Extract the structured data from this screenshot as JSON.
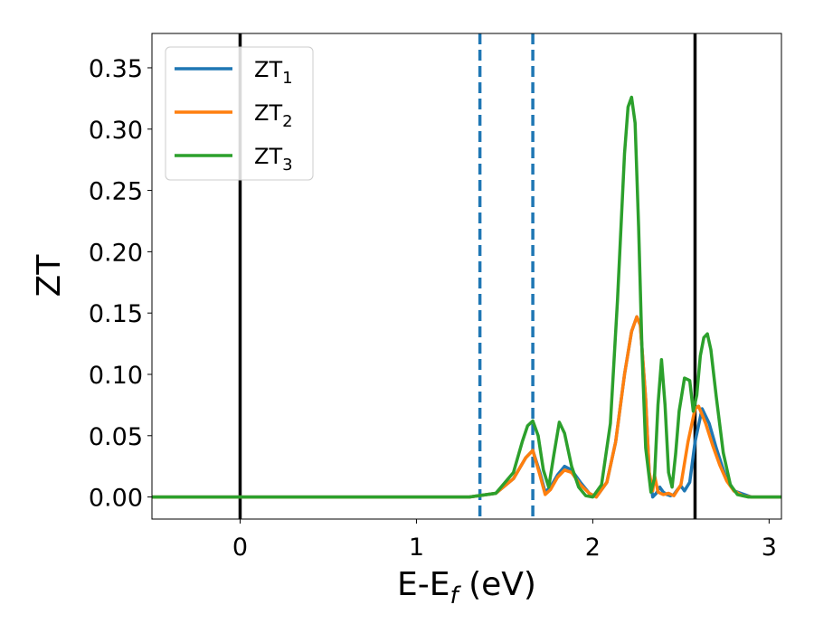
{
  "chart_data": {
    "type": "line",
    "xlabel": "E-E",
    "xlabel_sub": "f",
    "xlabel_unit": " (eV)",
    "ylabel": "ZT",
    "xlim": [
      -0.5,
      3.07
    ],
    "ylim": [
      -0.018,
      0.378
    ],
    "x_ticks": [
      0,
      1,
      2,
      3
    ],
    "x_tick_labels": [
      "0",
      "1",
      "2",
      "3"
    ],
    "y_ticks": [
      0.0,
      0.05,
      0.1,
      0.15,
      0.2,
      0.25,
      0.3,
      0.35
    ],
    "y_tick_labels": [
      "0.00",
      "0.05",
      "0.10",
      "0.15",
      "0.20",
      "0.25",
      "0.30",
      "0.35"
    ],
    "legend_position": "upper-left",
    "reference_lines": [
      {
        "x": 0.0,
        "style": "solid",
        "color": "#000000"
      },
      {
        "x": 2.58,
        "style": "solid",
        "color": "#000000"
      },
      {
        "x": 1.36,
        "style": "dashed",
        "color": "#1f77b4"
      },
      {
        "x": 1.66,
        "style": "dashed",
        "color": "#1f77b4"
      }
    ],
    "series": [
      {
        "name": "ZT",
        "name_sub": "1",
        "color": "#1f77b4",
        "x": [
          -0.5,
          1.3,
          1.45,
          1.55,
          1.62,
          1.66,
          1.7,
          1.73,
          1.76,
          1.8,
          1.84,
          1.88,
          1.93,
          1.98,
          2.02,
          2.08,
          2.13,
          2.18,
          2.22,
          2.25,
          2.27,
          2.3,
          2.32,
          2.34,
          2.36,
          2.38,
          2.4,
          2.42,
          2.44,
          2.46,
          2.48,
          2.5,
          2.52,
          2.55,
          2.58,
          2.62,
          2.66,
          2.7,
          2.75,
          2.8,
          2.9,
          3.07
        ],
        "y": [
          0.0,
          0.0,
          0.003,
          0.015,
          0.032,
          0.038,
          0.02,
          0.004,
          0.008,
          0.018,
          0.025,
          0.022,
          0.012,
          0.003,
          0.0,
          0.012,
          0.045,
          0.1,
          0.135,
          0.147,
          0.14,
          0.08,
          0.02,
          0.0,
          0.003,
          0.008,
          0.004,
          0.002,
          0.001,
          0.002,
          0.006,
          0.009,
          0.005,
          0.012,
          0.045,
          0.072,
          0.06,
          0.04,
          0.018,
          0.005,
          0.0,
          0.0
        ]
      },
      {
        "name": "ZT",
        "name_sub": "2",
        "color": "#ff7f0e",
        "x": [
          -0.5,
          1.3,
          1.45,
          1.55,
          1.62,
          1.66,
          1.7,
          1.73,
          1.76,
          1.8,
          1.84,
          1.88,
          1.93,
          1.98,
          2.02,
          2.08,
          2.13,
          2.18,
          2.22,
          2.25,
          2.27,
          2.3,
          2.32,
          2.34,
          2.35,
          2.37,
          2.4,
          2.43,
          2.46,
          2.5,
          2.54,
          2.58,
          2.6,
          2.64,
          2.68,
          2.72,
          2.76,
          2.8,
          2.85,
          2.9,
          3.07
        ],
        "y": [
          0.0,
          0.0,
          0.003,
          0.015,
          0.032,
          0.038,
          0.018,
          0.002,
          0.006,
          0.016,
          0.022,
          0.02,
          0.01,
          0.003,
          0.0,
          0.012,
          0.045,
          0.1,
          0.135,
          0.147,
          0.14,
          0.08,
          0.02,
          0.005,
          0.018,
          0.004,
          0.002,
          0.003,
          0.001,
          0.01,
          0.045,
          0.072,
          0.074,
          0.06,
          0.042,
          0.026,
          0.013,
          0.005,
          0.001,
          0.0,
          0.0
        ]
      },
      {
        "name": "ZT",
        "name_sub": "3",
        "color": "#2ca02c",
        "x": [
          -0.5,
          1.3,
          1.45,
          1.55,
          1.6,
          1.63,
          1.66,
          1.69,
          1.72,
          1.75,
          1.78,
          1.81,
          1.84,
          1.88,
          1.92,
          1.96,
          2.0,
          2.05,
          2.1,
          2.14,
          2.18,
          2.2,
          2.22,
          2.24,
          2.26,
          2.28,
          2.3,
          2.33,
          2.35,
          2.37,
          2.39,
          2.41,
          2.43,
          2.45,
          2.47,
          2.49,
          2.52,
          2.55,
          2.57,
          2.59,
          2.61,
          2.63,
          2.65,
          2.67,
          2.7,
          2.74,
          2.78,
          2.82,
          2.88,
          3.07
        ],
        "y": [
          0.0,
          0.0,
          0.003,
          0.02,
          0.045,
          0.058,
          0.062,
          0.05,
          0.022,
          0.008,
          0.035,
          0.061,
          0.052,
          0.025,
          0.008,
          0.001,
          0.0,
          0.01,
          0.06,
          0.16,
          0.28,
          0.318,
          0.326,
          0.305,
          0.22,
          0.115,
          0.04,
          0.004,
          0.015,
          0.075,
          0.112,
          0.075,
          0.02,
          0.008,
          0.035,
          0.07,
          0.097,
          0.095,
          0.07,
          0.083,
          0.115,
          0.13,
          0.133,
          0.12,
          0.082,
          0.036,
          0.01,
          0.002,
          0.0,
          0.0
        ]
      }
    ]
  }
}
